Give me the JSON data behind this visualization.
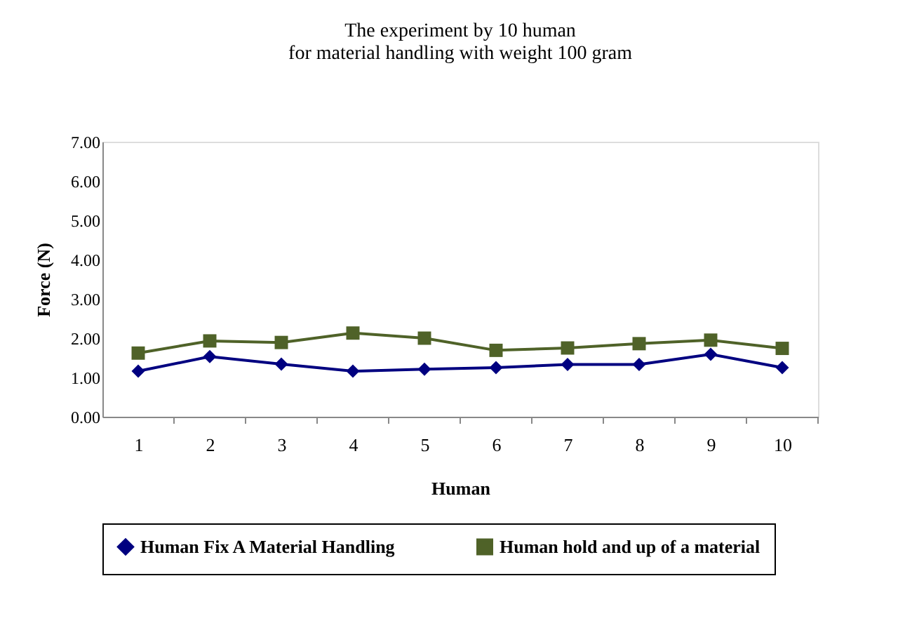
{
  "chart_data": {
    "type": "line",
    "title": [
      "The experiment by 10 human",
      "for material handling with weight 100 gram"
    ],
    "xlabel": "Human",
    "ylabel": "Force (N)",
    "categories": [
      "1",
      "2",
      "3",
      "4",
      "5",
      "6",
      "7",
      "8",
      "9",
      "10"
    ],
    "series": [
      {
        "name": "Human Fix A  Material Handling",
        "color": "#000080",
        "marker": "diamond",
        "values": [
          1.16,
          1.53,
          1.34,
          1.16,
          1.21,
          1.25,
          1.33,
          1.33,
          1.59,
          1.25
        ]
      },
      {
        "name": "Human hold and up of a material",
        "color": "#4f6228",
        "marker": "square",
        "values": [
          1.62,
          1.93,
          1.89,
          2.13,
          2.0,
          1.69,
          1.75,
          1.86,
          1.95,
          1.74
        ]
      }
    ],
    "ylim": [
      0,
      7
    ],
    "yticks": [
      {
        "value": 0,
        "label": "0.00"
      },
      {
        "value": 1,
        "label": "1.00"
      },
      {
        "value": 2,
        "label": "2.00"
      },
      {
        "value": 3,
        "label": "3.00"
      },
      {
        "value": 4,
        "label": "4.00"
      },
      {
        "value": 5,
        "label": "5.00"
      },
      {
        "value": 6,
        "label": "6.00"
      },
      {
        "value": 7,
        "label": "7.00"
      }
    ],
    "grid": false,
    "legend": "bottom",
    "line_style": "solid"
  }
}
